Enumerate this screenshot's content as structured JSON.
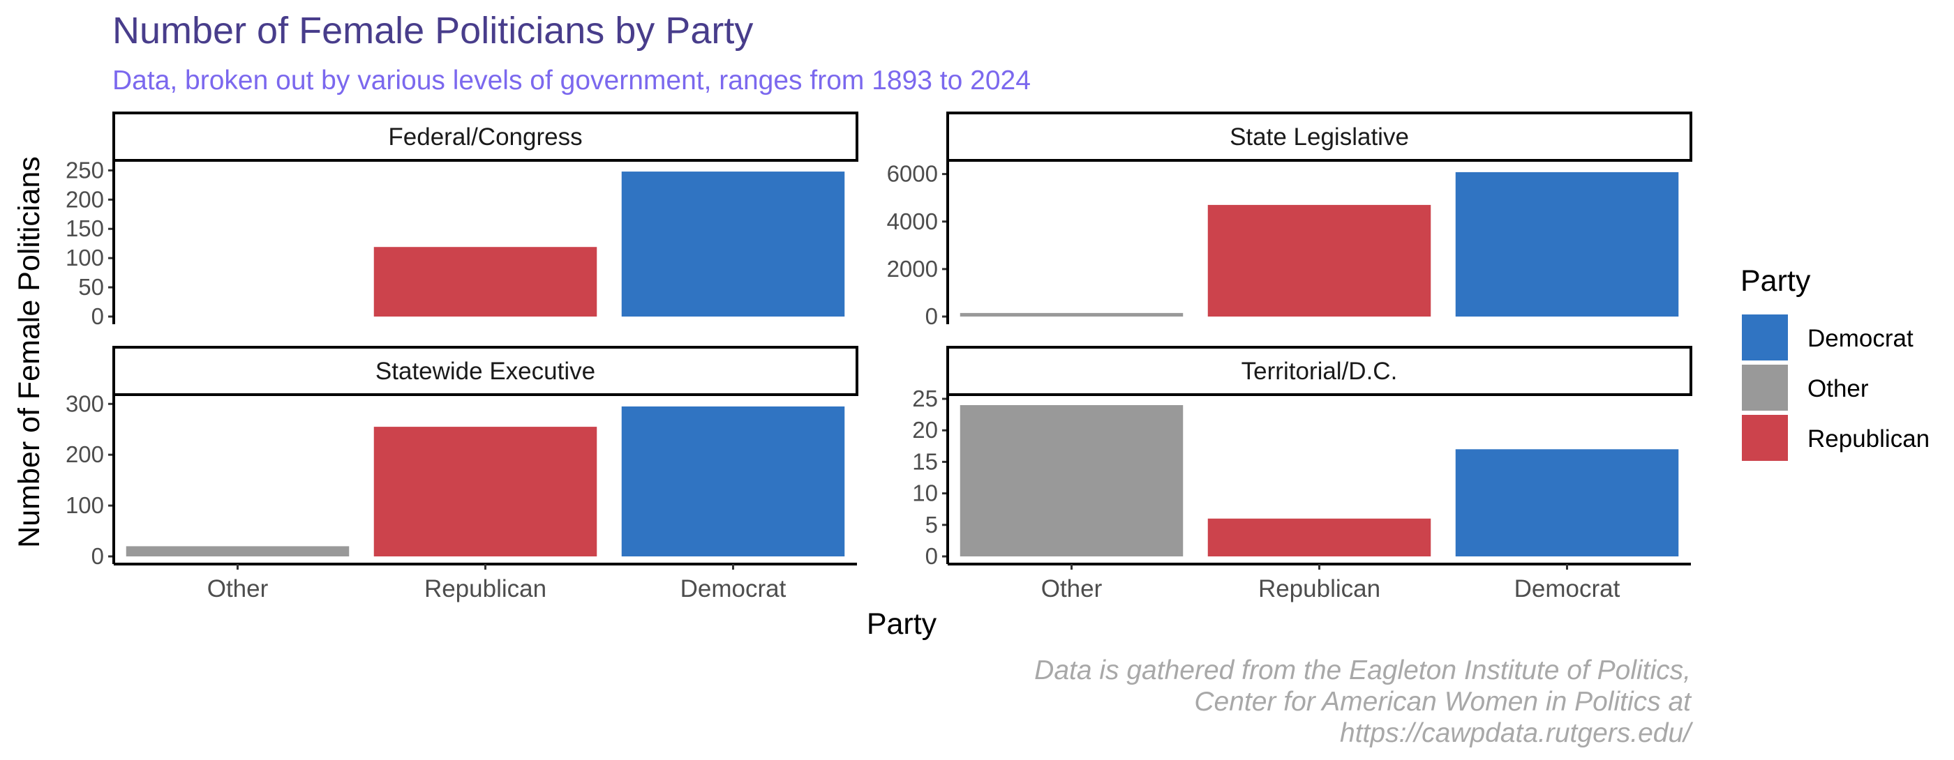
{
  "chart_data": {
    "type": "bar",
    "title": "Number of Female Politicians by Party",
    "subtitle": "Data, broken out by various levels of government, ranges from 1893 to 2024",
    "xlabel": "Party",
    "ylabel": "Number of Female Politicians",
    "caption": [
      "Data is gathered from the Eagleton Institute of Politics,",
      "Center for American Women in Politics at",
      "https://cawpdata.rutgers.edu/"
    ],
    "categories": [
      "Other",
      "Republican",
      "Democrat"
    ],
    "colors": {
      "Democrat": "#3074c2",
      "Other": "#999999",
      "Republican": "#cc434c"
    },
    "legend": {
      "title": "Party",
      "position": "right",
      "items": [
        "Democrat",
        "Other",
        "Republican"
      ]
    },
    "grid": false,
    "facets": [
      {
        "name": "Federal/Congress",
        "values": [
          0,
          119,
          248
        ],
        "ylim": [
          0,
          260
        ],
        "yticks": [
          0,
          50,
          100,
          150,
          200,
          250
        ]
      },
      {
        "name": "State Legislative",
        "values": [
          150,
          4700,
          6080
        ],
        "ylim": [
          0,
          6400
        ],
        "yticks": [
          0,
          2000,
          4000,
          6000
        ]
      },
      {
        "name": "Statewide Executive",
        "values": [
          20,
          255,
          295
        ],
        "ylim": [
          0,
          310
        ],
        "yticks": [
          0,
          100,
          200,
          300
        ]
      },
      {
        "name": "Territorial/D.C.",
        "values": [
          24,
          6,
          17
        ],
        "ylim": [
          0,
          25
        ],
        "yticks": [
          0,
          5,
          10,
          15,
          20,
          25
        ]
      }
    ]
  }
}
